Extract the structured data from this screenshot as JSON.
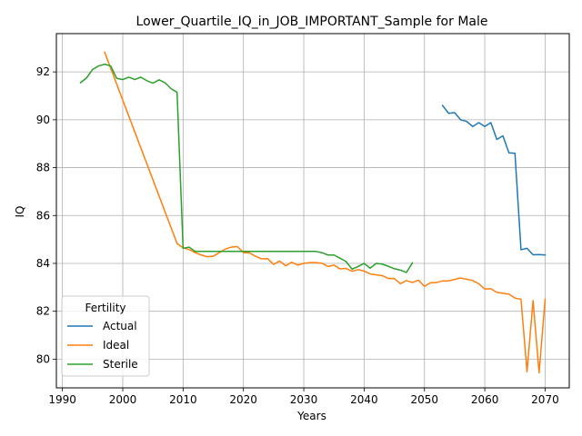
{
  "chart_data": {
    "type": "line",
    "title": "Lower_Quartile_IQ_in_JOB_IMPORTANT_Sample for Male",
    "xlabel": "Years",
    "ylabel": "IQ",
    "xlim": [
      1989,
      2074
    ],
    "ylim": [
      78.8,
      93.6
    ],
    "xticks": [
      1990,
      2000,
      2010,
      2020,
      2030,
      2040,
      2050,
      2060,
      2070
    ],
    "yticks": [
      80,
      82,
      84,
      86,
      88,
      90,
      92
    ],
    "grid": true,
    "legend": {
      "title": "Fertility",
      "placement": "lower-left"
    },
    "series": [
      {
        "name": "Actual",
        "color": "#1f77b4",
        "x": [
          2053,
          2054,
          2055,
          2056,
          2057,
          2058,
          2059,
          2060,
          2061,
          2062,
          2063,
          2064,
          2065,
          2066,
          2067,
          2068,
          2069,
          2070
        ],
        "y": [
          90.6,
          90.27,
          90.3,
          90.0,
          89.93,
          89.72,
          89.88,
          89.72,
          89.88,
          89.18,
          89.33,
          88.62,
          88.6,
          84.57,
          84.63,
          84.36,
          84.37,
          84.35
        ]
      },
      {
        "name": "Ideal",
        "color": "#ff7f0e",
        "x": [
          1997,
          2009,
          2010,
          2011,
          2012,
          2013,
          2014,
          2015,
          2016,
          2017,
          2018,
          2019,
          2020,
          2021,
          2022,
          2023,
          2024,
          2025,
          2026,
          2027,
          2028,
          2029,
          2030,
          2031,
          2032,
          2033,
          2034,
          2035,
          2036,
          2037,
          2038,
          2039,
          2040,
          2041,
          2042,
          2043,
          2044,
          2045,
          2046,
          2047,
          2048,
          2049,
          2050,
          2051,
          2052,
          2053,
          2054,
          2055,
          2056,
          2057,
          2058,
          2059,
          2060,
          2061,
          2062,
          2063,
          2064,
          2065,
          2066,
          2067,
          2068,
          2069,
          2070
        ],
        "y": [
          92.82,
          84.83,
          84.65,
          84.58,
          84.45,
          84.35,
          84.28,
          84.3,
          84.45,
          84.6,
          84.68,
          84.7,
          84.45,
          84.44,
          84.3,
          84.19,
          84.2,
          83.96,
          84.1,
          83.9,
          84.05,
          83.93,
          84.0,
          84.03,
          84.03,
          84.01,
          83.87,
          83.93,
          83.77,
          83.79,
          83.67,
          83.74,
          83.68,
          83.56,
          83.52,
          83.49,
          83.37,
          83.37,
          83.15,
          83.28,
          83.2,
          83.3,
          83.04,
          83.19,
          83.2,
          83.27,
          83.27,
          83.33,
          83.39,
          83.34,
          83.28,
          83.15,
          82.93,
          82.94,
          82.79,
          82.75,
          82.72,
          82.55,
          82.5,
          79.47,
          82.45,
          79.43,
          82.5
        ]
      },
      {
        "name": "Sterile",
        "color": "#2ca02c",
        "x": [
          1993,
          1994,
          1995,
          1996,
          1997,
          1998,
          1999,
          2000,
          2001,
          2002,
          2003,
          2004,
          2005,
          2006,
          2007,
          2008,
          2009,
          2010,
          2011,
          2012,
          2013,
          2014,
          2015,
          2016,
          2017,
          2018,
          2019,
          2020,
          2021,
          2022,
          2023,
          2024,
          2025,
          2026,
          2027,
          2028,
          2029,
          2030,
          2031,
          2032,
          2033,
          2034,
          2035,
          2036,
          2037,
          2038,
          2039,
          2040,
          2041,
          2042,
          2043,
          2044,
          2045,
          2046,
          2047,
          2048
        ],
        "y": [
          91.55,
          91.75,
          92.1,
          92.25,
          92.32,
          92.25,
          91.73,
          91.68,
          91.78,
          91.68,
          91.78,
          91.63,
          91.53,
          91.67,
          91.55,
          91.3,
          91.15,
          84.63,
          84.68,
          84.5,
          84.5,
          84.5,
          84.5,
          84.5,
          84.5,
          84.5,
          84.5,
          84.5,
          84.5,
          84.5,
          84.5,
          84.5,
          84.5,
          84.5,
          84.5,
          84.5,
          84.5,
          84.5,
          84.5,
          84.5,
          84.45,
          84.35,
          84.35,
          84.22,
          84.08,
          83.76,
          83.87,
          84.0,
          83.8,
          84.0,
          83.97,
          83.88,
          83.78,
          83.72,
          83.62,
          84.02
        ]
      }
    ]
  }
}
